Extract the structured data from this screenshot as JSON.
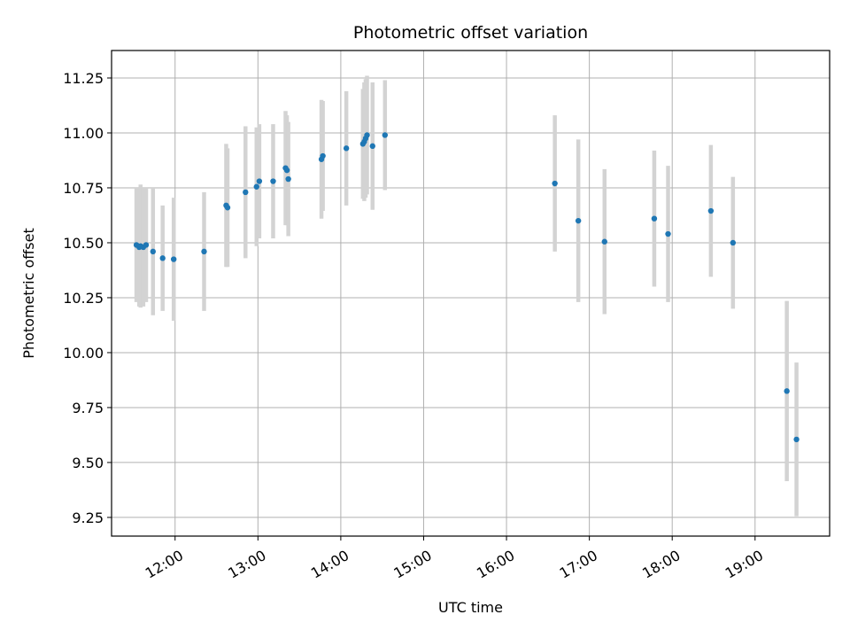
{
  "chart_data": {
    "type": "scatter",
    "title": "Photometric offset variation",
    "xlabel": "UTC time",
    "ylabel": "Photometric offset",
    "x_is_time": true,
    "xlim": [
      "11:14",
      "19:54"
    ],
    "ylim": [
      9.165,
      11.375
    ],
    "xticks": [
      "12:00",
      "13:00",
      "14:00",
      "15:00",
      "16:00",
      "17:00",
      "18:00",
      "19:00"
    ],
    "yticks": [
      9.25,
      9.5,
      9.75,
      10.0,
      10.25,
      10.5,
      10.75,
      11.0,
      11.25
    ],
    "ytick_labels": [
      "9.25",
      "9.50",
      "9.75",
      "10.00",
      "10.25",
      "10.50",
      "10.75",
      "11.00",
      "11.25"
    ],
    "grid": true,
    "colors": {
      "point": "#1f77b4",
      "errorbar": "#d3d3d3",
      "grid": "#b0b0b0"
    },
    "series": [
      {
        "points": [
          {
            "x": "11:32",
            "y": 10.49,
            "err": 0.26
          },
          {
            "x": "11:34",
            "y": 10.48,
            "err": 0.27
          },
          {
            "x": "11:35",
            "y": 10.485,
            "err": 0.28
          },
          {
            "x": "11:37",
            "y": 10.48,
            "err": 0.27
          },
          {
            "x": "11:39",
            "y": 10.49,
            "err": 0.26
          },
          {
            "x": "11:44",
            "y": 10.46,
            "err": 0.29
          },
          {
            "x": "11:51",
            "y": 10.43,
            "err": 0.24
          },
          {
            "x": "11:59",
            "y": 10.425,
            "err": 0.28
          },
          {
            "x": "12:21",
            "y": 10.46,
            "err": 0.27
          },
          {
            "x": "12:37",
            "y": 10.67,
            "err": 0.28
          },
          {
            "x": "12:38",
            "y": 10.66,
            "err": 0.27
          },
          {
            "x": "12:51",
            "y": 10.73,
            "err": 0.3
          },
          {
            "x": "12:59",
            "y": 10.755,
            "err": 0.27
          },
          {
            "x": "13:01",
            "y": 10.78,
            "err": 0.26
          },
          {
            "x": "13:11",
            "y": 10.78,
            "err": 0.26
          },
          {
            "x": "13:20",
            "y": 10.84,
            "err": 0.26
          },
          {
            "x": "13:21",
            "y": 10.83,
            "err": 0.25
          },
          {
            "x": "13:22",
            "y": 10.79,
            "err": 0.26
          },
          {
            "x": "13:46",
            "y": 10.88,
            "err": 0.27
          },
          {
            "x": "13:47",
            "y": 10.895,
            "err": 0.25
          },
          {
            "x": "14:04",
            "y": 10.93,
            "err": 0.26
          },
          {
            "x": "14:16",
            "y": 10.95,
            "err": 0.25
          },
          {
            "x": "14:17",
            "y": 10.96,
            "err": 0.27
          },
          {
            "x": "14:18",
            "y": 10.975,
            "err": 0.27
          },
          {
            "x": "14:19",
            "y": 10.99,
            "err": 0.27
          },
          {
            "x": "14:23",
            "y": 10.94,
            "err": 0.29
          },
          {
            "x": "14:32",
            "y": 10.99,
            "err": 0.25
          },
          {
            "x": "16:35",
            "y": 10.77,
            "err": 0.31
          },
          {
            "x": "16:52",
            "y": 10.6,
            "err": 0.37
          },
          {
            "x": "17:11",
            "y": 10.505,
            "err": 0.33
          },
          {
            "x": "17:47",
            "y": 10.61,
            "err": 0.31
          },
          {
            "x": "17:57",
            "y": 10.54,
            "err": 0.31
          },
          {
            "x": "18:28",
            "y": 10.645,
            "err": 0.3
          },
          {
            "x": "18:44",
            "y": 10.5,
            "err": 0.3
          },
          {
            "x": "19:23",
            "y": 9.825,
            "err": 0.41
          },
          {
            "x": "19:30",
            "y": 9.605,
            "err": 0.35
          }
        ]
      }
    ]
  }
}
